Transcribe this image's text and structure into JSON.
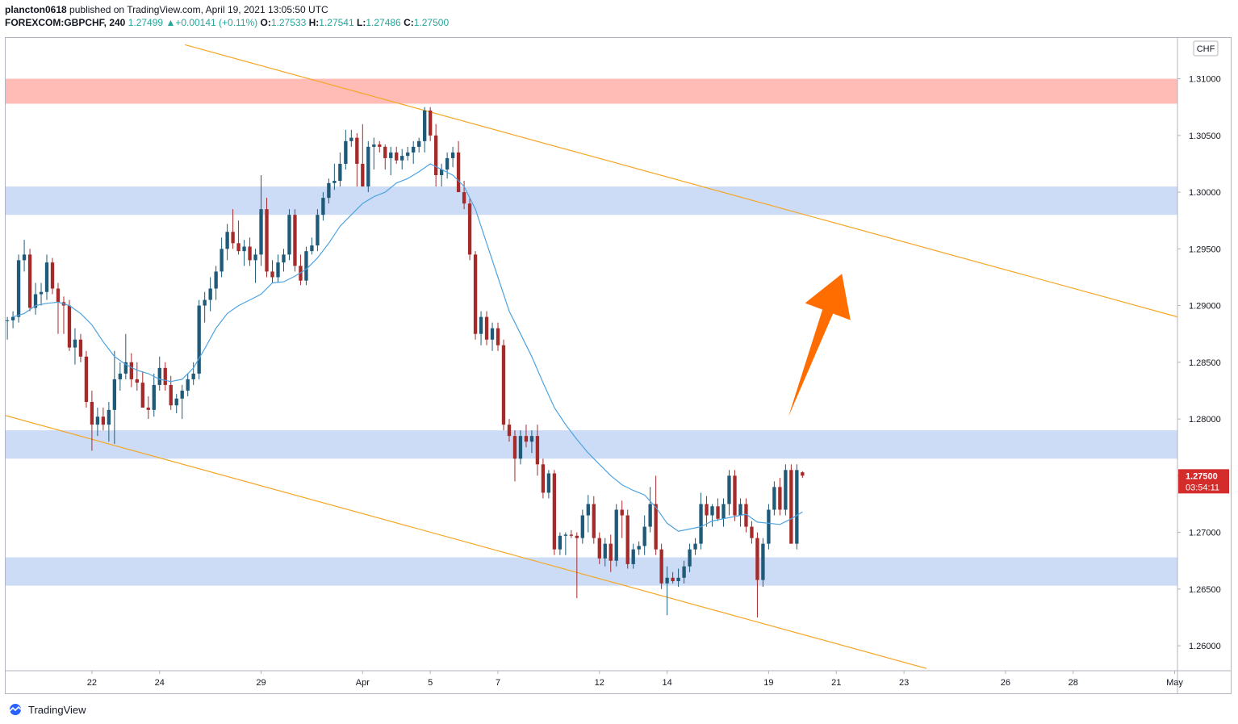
{
  "header": {
    "publisher": "plancton0618",
    "published_text": "published on TradingView.com, April 19, 2021 13:05:50 UTC",
    "symbol": "FOREXCOM:GBPCHF, 240",
    "last": "1.27499",
    "change_arrow": "▲",
    "change": "+0.00141 (+0.11%)",
    "open_label": "O:",
    "open": "1.27533",
    "high_label": "H:",
    "high": "1.27541",
    "low_label": "L:",
    "low": "1.27486",
    "close_label": "C:",
    "close": "1.27500"
  },
  "currency_button": "CHF",
  "price_badge": {
    "price": "1.27500",
    "countdown": "03:54:11"
  },
  "footer": {
    "brand": "TradingView",
    "logo_icon": "tradingview-logo-icon"
  },
  "colors": {
    "bull": "#1f5a78",
    "bear": "#a52a2a",
    "ma": "#4da3e0",
    "trendline": "#f5a623",
    "support_zone": "#c8d8f5",
    "resistance_zone": "#ffb8b3",
    "arrow": "#ff6d00",
    "badge": "#d42b2b"
  },
  "chart_data": {
    "type": "candlestick",
    "symbol": "FOREXCOM:GBPCHF",
    "interval": "240",
    "y_ticks": [
      "1.31000",
      "1.30500",
      "1.30000",
      "1.29500",
      "1.29000",
      "1.28500",
      "1.28000",
      "1.27500",
      "1.27000",
      "1.26500",
      "1.26000"
    ],
    "y_tick_values": [
      1.31,
      1.305,
      1.3,
      1.295,
      1.29,
      1.285,
      1.28,
      1.275,
      1.27,
      1.265,
      1.26
    ],
    "ylim": [
      1.2578,
      1.3136
    ],
    "x_ticks": [
      {
        "label": "22",
        "bar": 15
      },
      {
        "label": "24",
        "bar": 27
      },
      {
        "label": "29",
        "bar": 45
      },
      {
        "label": "Apr",
        "bar": 63
      },
      {
        "label": "5",
        "bar": 75
      },
      {
        "label": "7",
        "bar": 87
      },
      {
        "label": "12",
        "bar": 105
      },
      {
        "label": "14",
        "bar": 117
      },
      {
        "label": "19",
        "bar": 135
      },
      {
        "label": "21",
        "bar": 147
      },
      {
        "label": "23",
        "bar": 159
      },
      {
        "label": "26",
        "bar": 177
      },
      {
        "label": "28",
        "bar": 189
      },
      {
        "label": "May",
        "bar": 207
      }
    ],
    "bar_range": [
      -0.3,
      207.5
    ],
    "zones": [
      {
        "type": "resistance",
        "top": 1.31,
        "bottom": 1.3078
      },
      {
        "type": "support",
        "top": 1.3005,
        "bottom": 1.298
      },
      {
        "type": "support",
        "top": 1.279,
        "bottom": 1.2765
      },
      {
        "type": "support",
        "top": 1.2678,
        "bottom": 1.2653
      }
    ],
    "trendlines": [
      {
        "from": [
          31.5,
          1.313
        ],
        "to": [
          207.5,
          1.289
        ]
      },
      {
        "from": [
          -0.3,
          1.2803
        ],
        "to": [
          163,
          1.258
        ]
      }
    ],
    "forecast_arrow": {
      "from": [
        138.5,
        1.2802
      ],
      "to": [
        148,
        1.2928
      ],
      "direction": "up"
    },
    "candles": [
      [
        1.2887,
        1.289,
        1.287,
        1.2887
      ],
      [
        1.2887,
        1.2895,
        1.288,
        1.289
      ],
      [
        1.289,
        1.2945,
        1.2885,
        1.294
      ],
      [
        1.294,
        1.2958,
        1.293,
        1.2945
      ],
      [
        1.2945,
        1.295,
        1.2895,
        1.2898
      ],
      [
        1.2898,
        1.292,
        1.2892,
        1.291
      ],
      [
        1.291,
        1.292,
        1.29,
        1.2912
      ],
      [
        1.2912,
        1.2945,
        1.2905,
        1.2938
      ],
      [
        1.2938,
        1.2942,
        1.291,
        1.2915
      ],
      [
        1.2915,
        1.292,
        1.2875,
        1.2903
      ],
      [
        1.2903,
        1.2908,
        1.2875,
        1.29
      ],
      [
        1.29,
        1.2905,
        1.286,
        1.2863
      ],
      [
        1.2863,
        1.288,
        1.2848,
        1.287
      ],
      [
        1.287,
        1.2875,
        1.285,
        1.2855
      ],
      [
        1.2855,
        1.286,
        1.281,
        1.2815
      ],
      [
        1.2815,
        1.2825,
        1.2772,
        1.2795
      ],
      [
        1.2795,
        1.281,
        1.2785,
        1.2802
      ],
      [
        1.2802,
        1.281,
        1.279,
        1.2795
      ],
      [
        1.2795,
        1.2815,
        1.278,
        1.2808
      ],
      [
        1.2808,
        1.286,
        1.2778,
        1.2835
      ],
      [
        1.2835,
        1.285,
        1.2825,
        1.284
      ],
      [
        1.284,
        1.2875,
        1.2835,
        1.285
      ],
      [
        1.285,
        1.2858,
        1.2828,
        1.2835
      ],
      [
        1.2835,
        1.285,
        1.2825,
        1.2832
      ],
      [
        1.2832,
        1.2842,
        1.2815,
        1.281
      ],
      [
        1.281,
        1.282,
        1.28,
        1.2808
      ],
      [
        1.2808,
        1.284,
        1.2802,
        1.283
      ],
      [
        1.283,
        1.2855,
        1.2825,
        1.2845
      ],
      [
        1.2845,
        1.285,
        1.2825,
        1.283
      ],
      [
        1.283,
        1.2838,
        1.2808,
        1.2812
      ],
      [
        1.2812,
        1.2822,
        1.2805,
        1.2818
      ],
      [
        1.2818,
        1.283,
        1.28,
        1.2825
      ],
      [
        1.2825,
        1.284,
        1.282,
        1.2835
      ],
      [
        1.2835,
        1.285,
        1.283,
        1.284
      ],
      [
        1.284,
        1.2905,
        1.2835,
        1.29
      ],
      [
        1.29,
        1.2912,
        1.2885,
        1.2905
      ],
      [
        1.2905,
        1.2925,
        1.2895,
        1.2915
      ],
      [
        1.2915,
        1.2935,
        1.2905,
        1.293
      ],
      [
        1.293,
        1.296,
        1.2925,
        1.295
      ],
      [
        1.295,
        1.2972,
        1.294,
        1.2965
      ],
      [
        1.2965,
        1.2985,
        1.295,
        1.2955
      ],
      [
        1.2955,
        1.2975,
        1.2945,
        1.2948
      ],
      [
        1.2948,
        1.2958,
        1.2935,
        1.2952
      ],
      [
        1.2952,
        1.296,
        1.2935,
        1.294
      ],
      [
        1.294,
        1.295,
        1.292,
        1.2945
      ],
      [
        1.2945,
        1.3015,
        1.2935,
        1.2985
      ],
      [
        1.2985,
        1.2995,
        1.2925,
        1.293
      ],
      [
        1.293,
        1.294,
        1.292,
        1.2925
      ],
      [
        1.2925,
        1.2945,
        1.292,
        1.2938
      ],
      [
        1.2938,
        1.295,
        1.293,
        1.2945
      ],
      [
        1.2945,
        1.2985,
        1.294,
        1.298
      ],
      [
        1.298,
        1.2985,
        1.293,
        1.2935
      ],
      [
        1.2935,
        1.2945,
        1.2918,
        1.2922
      ],
      [
        1.2922,
        1.2952,
        1.2918,
        1.2948
      ],
      [
        1.2948,
        1.296,
        1.2945,
        1.2953
      ],
      [
        1.2953,
        1.2985,
        1.2948,
        1.298
      ],
      [
        1.298,
        1.3,
        1.2975,
        1.2995
      ],
      [
        1.2995,
        1.3012,
        1.299,
        1.3008
      ],
      [
        1.3008,
        1.3025,
        1.3002,
        1.301
      ],
      [
        1.301,
        1.3035,
        1.3005,
        1.3025
      ],
      [
        1.3025,
        1.3055,
        1.302,
        1.3045
      ],
      [
        1.3045,
        1.3055,
        1.304,
        1.3048
      ],
      [
        1.3048,
        1.3052,
        1.3005,
        1.3025
      ],
      [
        1.3025,
        1.306,
        1.3005,
        1.3005
      ],
      [
        1.3005,
        1.3045,
        1.3,
        1.304
      ],
      [
        1.304,
        1.3048,
        1.302,
        1.3042
      ],
      [
        1.3042,
        1.3045,
        1.3035,
        1.304
      ],
      [
        1.304,
        1.3042,
        1.302,
        1.303
      ],
      [
        1.303,
        1.304,
        1.3015,
        1.3035
      ],
      [
        1.3035,
        1.304,
        1.3025,
        1.3028
      ],
      [
        1.3028,
        1.3038,
        1.302,
        1.3032
      ],
      [
        1.3032,
        1.304,
        1.3028,
        1.3035
      ],
      [
        1.3035,
        1.3045,
        1.3025,
        1.304
      ],
      [
        1.304,
        1.3048,
        1.3035,
        1.3045
      ],
      [
        1.3045,
        1.3075,
        1.3035,
        1.3072
      ],
      [
        1.3072,
        1.3075,
        1.3045,
        1.305
      ],
      [
        1.305,
        1.306,
        1.3005,
        1.3015
      ],
      [
        1.3015,
        1.3025,
        1.3005,
        1.302
      ],
      [
        1.302,
        1.3035,
        1.3012,
        1.303
      ],
      [
        1.303,
        1.304,
        1.3022,
        1.3035
      ],
      [
        1.3035,
        1.3045,
        1.3,
        1.3
      ],
      [
        1.3,
        1.301,
        1.2985,
        1.299
      ],
      [
        1.299,
        1.2995,
        1.294,
        1.2945
      ],
      [
        1.2945,
        1.2948,
        1.287,
        1.2875
      ],
      [
        1.2875,
        1.2895,
        1.2865,
        1.289
      ],
      [
        1.289,
        1.2895,
        1.2865,
        1.287
      ],
      [
        1.287,
        1.2885,
        1.286,
        1.288
      ],
      [
        1.288,
        1.2885,
        1.286,
        1.2865
      ],
      [
        1.2865,
        1.287,
        1.279,
        1.2795
      ],
      [
        1.2795,
        1.28,
        1.278,
        1.2785
      ],
      [
        1.2785,
        1.279,
        1.2745,
        1.2765
      ],
      [
        1.2765,
        1.279,
        1.276,
        1.2785
      ],
      [
        1.2785,
        1.2795,
        1.2775,
        1.278
      ],
      [
        1.278,
        1.279,
        1.277,
        1.2785
      ],
      [
        1.2785,
        1.2795,
        1.275,
        1.276
      ],
      [
        1.276,
        1.2765,
        1.273,
        1.2735
      ],
      [
        1.2735,
        1.2755,
        1.273,
        1.2752
      ],
      [
        1.2752,
        1.2755,
        1.268,
        1.2685
      ],
      [
        1.2685,
        1.27,
        1.268,
        1.2697
      ],
      [
        1.2697,
        1.27,
        1.268,
        1.2698
      ],
      [
        1.2698,
        1.2702,
        1.2695,
        1.2697
      ],
      [
        1.2697,
        1.27,
        1.2642,
        1.2695
      ],
      [
        1.2695,
        1.272,
        1.269,
        1.2715
      ],
      [
        1.2715,
        1.2733,
        1.27,
        1.2725
      ],
      [
        1.2725,
        1.2732,
        1.269,
        1.2695
      ],
      [
        1.2695,
        1.27,
        1.2672,
        1.2677
      ],
      [
        1.2677,
        1.2695,
        1.267,
        1.269
      ],
      [
        1.269,
        1.2698,
        1.2665,
        1.2675
      ],
      [
        1.2675,
        1.2725,
        1.267,
        1.272
      ],
      [
        1.272,
        1.2728,
        1.2695,
        1.2715
      ],
      [
        1.2715,
        1.272,
        1.2668,
        1.2672
      ],
      [
        1.2672,
        1.269,
        1.2668,
        1.2685
      ],
      [
        1.2685,
        1.2692,
        1.268,
        1.2688
      ],
      [
        1.2688,
        1.2715,
        1.268,
        1.2705
      ],
      [
        1.2705,
        1.274,
        1.27,
        1.2725
      ],
      [
        1.2725,
        1.275,
        1.268,
        1.2685
      ],
      [
        1.2685,
        1.269,
        1.265,
        1.2655
      ],
      [
        1.2655,
        1.267,
        1.2627,
        1.266
      ],
      [
        1.266,
        1.2665,
        1.2655,
        1.2657
      ],
      [
        1.2657,
        1.2668,
        1.2652,
        1.266
      ],
      [
        1.266,
        1.2675,
        1.2655,
        1.267
      ],
      [
        1.267,
        1.269,
        1.2665,
        1.2685
      ],
      [
        1.2685,
        1.2695,
        1.268,
        1.269
      ],
      [
        1.269,
        1.2735,
        1.2685,
        1.2725
      ],
      [
        1.2725,
        1.2732,
        1.2705,
        1.2715
      ],
      [
        1.2715,
        1.2725,
        1.2705,
        1.2723
      ],
      [
        1.2723,
        1.273,
        1.271,
        1.2712
      ],
      [
        1.2712,
        1.273,
        1.2705,
        1.2725
      ],
      [
        1.2725,
        1.2755,
        1.2715,
        1.275
      ],
      [
        1.275,
        1.2755,
        1.271,
        1.2715
      ],
      [
        1.2715,
        1.273,
        1.2705,
        1.2725
      ],
      [
        1.2725,
        1.273,
        1.27,
        1.2705
      ],
      [
        1.2705,
        1.271,
        1.269,
        1.2695
      ],
      [
        1.2695,
        1.27,
        1.2625,
        1.2658
      ],
      [
        1.2658,
        1.2695,
        1.2652,
        1.269
      ],
      [
        1.269,
        1.2725,
        1.2685,
        1.272
      ],
      [
        1.272,
        1.2745,
        1.2715,
        1.274
      ],
      [
        1.274,
        1.2748,
        1.2715,
        1.272
      ],
      [
        1.272,
        1.276,
        1.2715,
        1.2755
      ],
      [
        1.2755,
        1.276,
        1.269,
        1.269
      ],
      [
        1.269,
        1.276,
        1.2685,
        1.2755
      ],
      [
        1.2753,
        1.2754,
        1.2748,
        1.275
      ]
    ],
    "ma20": [
      [
        1,
        1.289
      ],
      [
        3,
        1.2893
      ],
      [
        5,
        1.29
      ],
      [
        7,
        1.2902
      ],
      [
        9,
        1.2903
      ],
      [
        11,
        1.29
      ],
      [
        13,
        1.2893
      ],
      [
        15,
        1.2883
      ],
      [
        17,
        1.2868
      ],
      [
        19,
        1.2855
      ],
      [
        21,
        1.2848
      ],
      [
        23,
        1.2843
      ],
      [
        25,
        1.284
      ],
      [
        27,
        1.2835
      ],
      [
        29,
        1.2833
      ],
      [
        31,
        1.2835
      ],
      [
        33,
        1.2845
      ],
      [
        35,
        1.2862
      ],
      [
        37,
        1.288
      ],
      [
        39,
        1.2893
      ],
      [
        41,
        1.29
      ],
      [
        43,
        1.2905
      ],
      [
        45,
        1.291
      ],
      [
        47,
        1.292
      ],
      [
        49,
        1.2921
      ],
      [
        51,
        1.2926
      ],
      [
        53,
        1.2932
      ],
      [
        55,
        1.2942
      ],
      [
        57,
        1.2955
      ],
      [
        59,
        1.297
      ],
      [
        61,
        1.298
      ],
      [
        63,
        1.299
      ],
      [
        65,
        1.2996
      ],
      [
        67,
        1.3
      ],
      [
        69,
        1.3008
      ],
      [
        71,
        1.3012
      ],
      [
        73,
        1.3018
      ],
      [
        75,
        1.3025
      ],
      [
        77,
        1.302
      ],
      [
        79,
        1.3015
      ],
      [
        81,
        1.3005
      ],
      [
        83,
        1.2985
      ],
      [
        85,
        1.2955
      ],
      [
        87,
        1.2925
      ],
      [
        89,
        1.2895
      ],
      [
        91,
        1.2875
      ],
      [
        93,
        1.2855
      ],
      [
        95,
        1.2832
      ],
      [
        97,
        1.281
      ],
      [
        99,
        1.2795
      ],
      [
        101,
        1.2782
      ],
      [
        103,
        1.277
      ],
      [
        105,
        1.276
      ],
      [
        107,
        1.275
      ],
      [
        109,
        1.2742
      ],
      [
        111,
        1.2737
      ],
      [
        113,
        1.2733
      ],
      [
        115,
        1.2722
      ],
      [
        117,
        1.2708
      ],
      [
        119,
        1.2701
      ],
      [
        121,
        1.2703
      ],
      [
        123,
        1.2705
      ],
      [
        125,
        1.271
      ],
      [
        127,
        1.2712
      ],
      [
        129,
        1.2714
      ],
      [
        131,
        1.2716
      ],
      [
        133,
        1.2709
      ],
      [
        135,
        1.2708
      ],
      [
        137,
        1.2707
      ],
      [
        139,
        1.2712
      ],
      [
        141,
        1.2718
      ]
    ]
  }
}
